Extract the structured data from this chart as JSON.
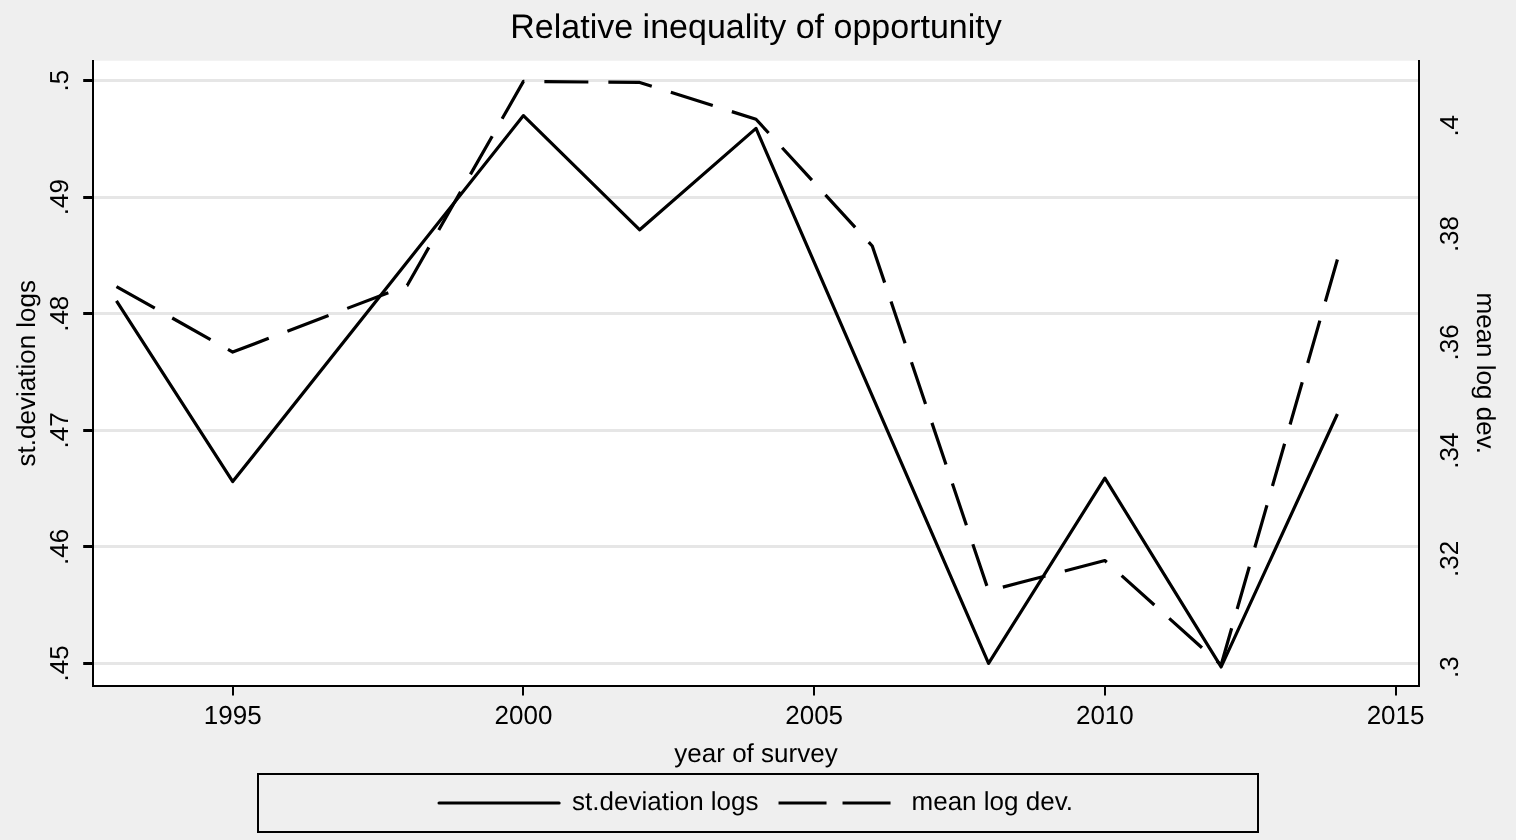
{
  "chart_data": {
    "type": "line",
    "title": "Relative inequality of opportunity",
    "xlabel": "year of survey",
    "ylabel": "st.deviation logs",
    "y2label": "mean log dev.",
    "series": [
      {
        "name": "st.deviation logs",
        "color": "#000000",
        "line_style": "solid",
        "x": [
          1993,
          1995,
          2000,
          2002,
          2004,
          2008,
          2010,
          2012,
          2014
        ],
        "values": [
          0.4811,
          0.4656,
          0.497,
          0.4872,
          0.4959,
          0.45,
          0.4659,
          0.4497,
          0.4714
        ]
      },
      {
        "name": "mean log dev.",
        "color": "#000000",
        "line_style": "dashed",
        "axis": "y2",
        "x": [
          1993,
          1995,
          1998,
          2000,
          2002,
          2004,
          2006,
          2008,
          2010,
          2012,
          2014
        ],
        "values": [
          0.3703,
          0.3582,
          0.3705,
          0.4082,
          0.408,
          0.4012,
          0.3778,
          0.3141,
          0.3197,
          0.3004,
          0.3753
        ]
      }
    ],
    "xlim": [
      1992.6,
      2015.4
    ],
    "xticks": [
      1995,
      2000,
      2005,
      2010,
      2015
    ],
    "ylim": [
      0.4481,
      0.5017
    ],
    "yticks": [
      {
        "value": 0.45,
        "label": ".45"
      },
      {
        "value": 0.46,
        "label": ".46"
      },
      {
        "value": 0.47,
        "label": ".47"
      },
      {
        "value": 0.48,
        "label": ".48"
      },
      {
        "value": 0.49,
        "label": ".49"
      },
      {
        "value": 0.5,
        "label": ".5"
      }
    ],
    "y2lim": [
      0.2966,
      0.412
    ],
    "y2ticks": [
      {
        "value": 0.3,
        "label": ".3"
      },
      {
        "value": 0.32,
        "label": ".32"
      },
      {
        "value": 0.34,
        "label": ".34"
      },
      {
        "value": 0.36,
        "label": ".36"
      },
      {
        "value": 0.38,
        "label": ".38"
      },
      {
        "value": 0.4,
        "label": ".4"
      }
    ],
    "grid": "y",
    "legend": "bottom",
    "marker": "none"
  }
}
